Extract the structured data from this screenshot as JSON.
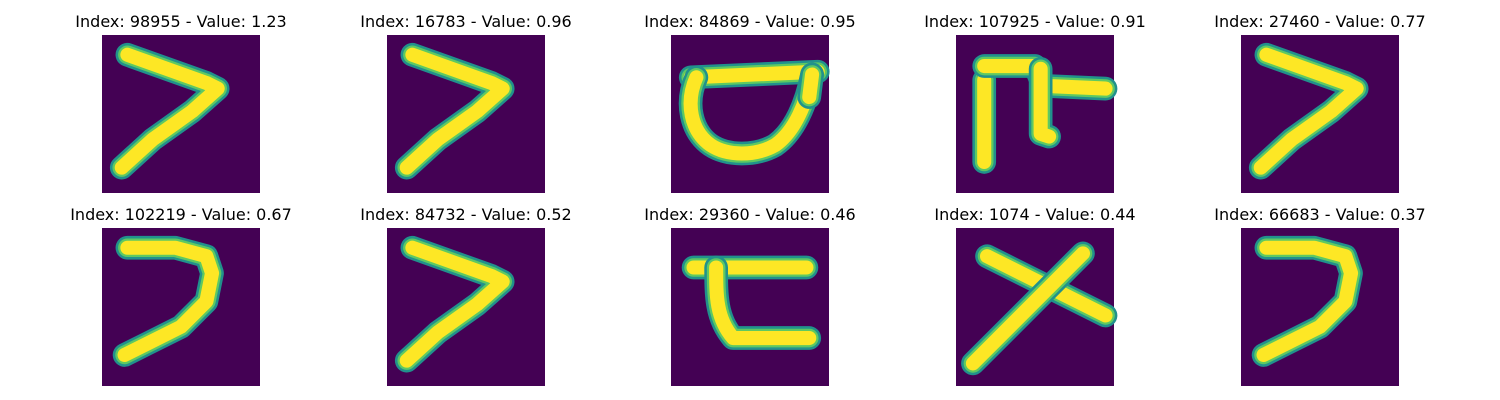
{
  "colors": {
    "background": "#440154",
    "stroke_core": "#fde725",
    "stroke_mid": "#5ec962",
    "stroke_edge": "#21918c"
  },
  "chart_data": {
    "type": "image_grid",
    "rows": 2,
    "columns": 5,
    "colormap": "viridis",
    "panels": [
      {
        "title": "Index: 98955 - Value: 1.23",
        "index": 98955,
        "value": 1.23,
        "glyph": ">"
      },
      {
        "title": "Index: 16783 - Value: 0.96",
        "index": 16783,
        "value": 0.96,
        "glyph": ">"
      },
      {
        "title": "Index: 84869 - Value: 0.95",
        "index": 84869,
        "value": 0.95,
        "glyph": "loop-with-bar"
      },
      {
        "title": "Index: 107925 - Value: 0.91",
        "index": 107925,
        "value": 0.91,
        "glyph": "pi-like"
      },
      {
        "title": "Index: 27460 - Value: 0.77",
        "index": 27460,
        "value": 0.77,
        "glyph": ">"
      },
      {
        "title": "Index: 102219 - Value: 0.67",
        "index": 102219,
        "value": 0.67,
        "glyph": "7"
      },
      {
        "title": "Index: 84732 - Value: 0.52",
        "index": 84732,
        "value": 0.52,
        "glyph": ">"
      },
      {
        "title": "Index: 29360 - Value: 0.46",
        "index": 29360,
        "value": 0.46,
        "glyph": "c-with-bar"
      },
      {
        "title": "Index: 1074 - Value: 0.44",
        "index": 1074,
        "value": 0.44,
        "glyph": "x"
      },
      {
        "title": "Index: 66683 - Value: 0.37",
        "index": 66683,
        "value": 0.37,
        "glyph": "7"
      }
    ]
  }
}
